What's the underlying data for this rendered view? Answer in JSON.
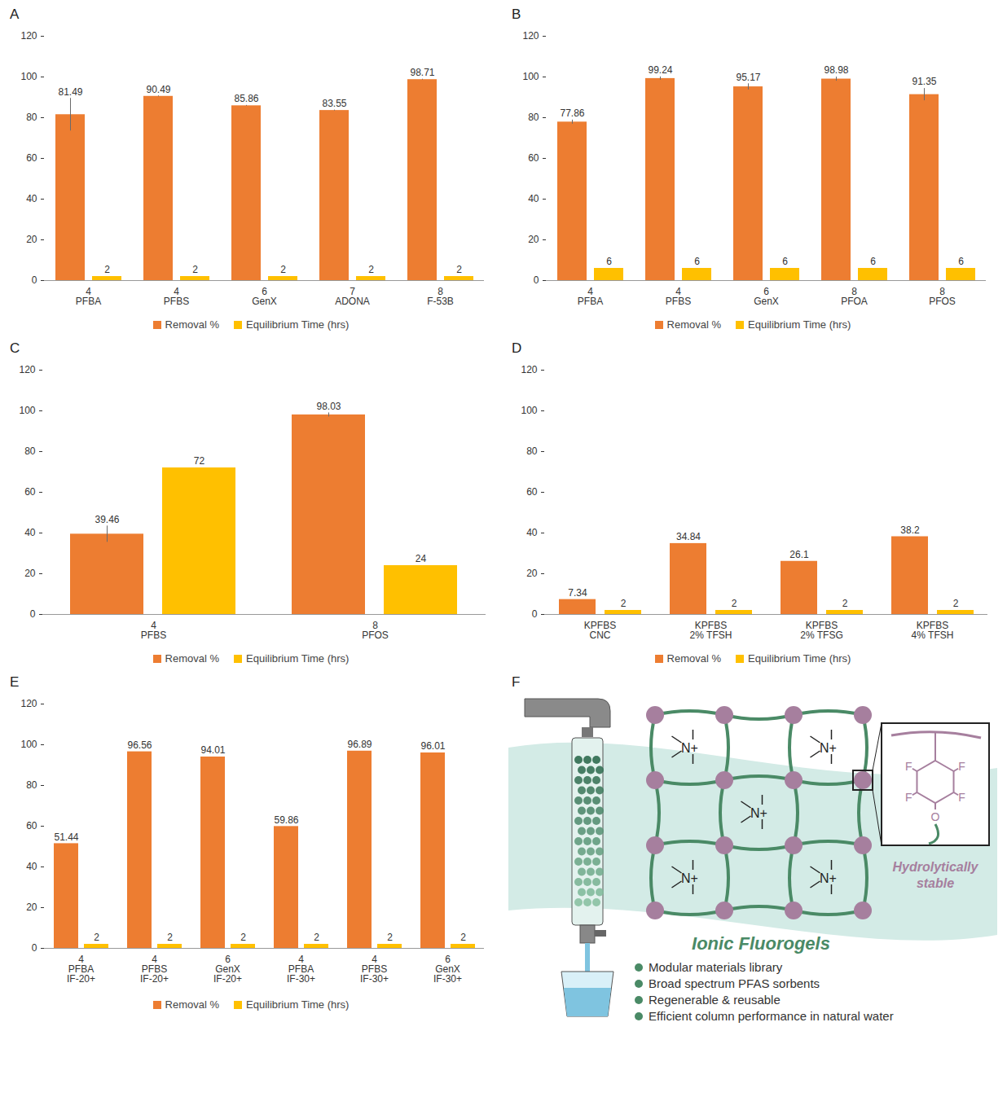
{
  "chart_data": [
    {
      "type": "bar",
      "title": "A",
      "categories": [
        [
          "4",
          "PFBA"
        ],
        [
          "4",
          "PFBS"
        ],
        [
          "6",
          "GenX"
        ],
        [
          "7",
          "ADONA"
        ],
        [
          "8",
          "F-53B"
        ]
      ],
      "series": [
        {
          "name": "Removal %",
          "color": "#ed7d31",
          "values": [
            81.49,
            90.49,
            85.86,
            83.55,
            98.71
          ],
          "errors": [
            8,
            0.2,
            0.2,
            0.2,
            0.2
          ]
        },
        {
          "name": "Equilibrium Time (hrs)",
          "color": "#ffc000",
          "values": [
            2,
            2,
            2,
            2,
            2
          ]
        }
      ],
      "ylim": [
        0,
        120
      ],
      "yticks": [
        0,
        20,
        40,
        60,
        80,
        100,
        120
      ],
      "grid": false,
      "data_labels": true,
      "legend": "bottom"
    },
    {
      "type": "bar",
      "title": "B",
      "categories": [
        [
          "4",
          "PFBA"
        ],
        [
          "4",
          "PFBS"
        ],
        [
          "6",
          "GenX"
        ],
        [
          "8",
          "PFOA"
        ],
        [
          "8",
          "PFOS"
        ]
      ],
      "series": [
        {
          "name": "Removal %",
          "color": "#ed7d31",
          "values": [
            77.86,
            99.24,
            95.17,
            98.98,
            91.35
          ],
          "errors": [
            1,
            0.8,
            1.5,
            1,
            3
          ]
        },
        {
          "name": "Equilibrium Time (hrs)",
          "color": "#ffc000",
          "values": [
            6,
            6,
            6,
            6,
            6
          ]
        }
      ],
      "ylim": [
        0,
        120
      ],
      "yticks": [
        0,
        20,
        40,
        60,
        80,
        100,
        120
      ],
      "grid": false,
      "data_labels": true,
      "legend": "bottom"
    },
    {
      "type": "bar",
      "title": "C",
      "categories": [
        [
          "4",
          "PFBS"
        ],
        [
          "8",
          "PFOS"
        ]
      ],
      "series": [
        {
          "name": "Removal %",
          "color": "#ed7d31",
          "values": [
            39.46,
            98.03
          ],
          "errors": [
            4,
            1
          ]
        },
        {
          "name": "Equilibrium Time (hrs)",
          "color": "#ffc000",
          "values": [
            72,
            24
          ]
        }
      ],
      "ylim": [
        0,
        120
      ],
      "yticks": [
        0,
        20,
        40,
        60,
        80,
        100,
        120
      ],
      "grid": false,
      "data_labels": true,
      "legend": "bottom"
    },
    {
      "type": "bar",
      "title": "D",
      "categories": [
        [
          "KPFBS",
          "CNC"
        ],
        [
          "KPFBS",
          "2% TFSH"
        ],
        [
          "KPFBS",
          "2% TFSG"
        ],
        [
          "KPFBS",
          "4% TFSH"
        ]
      ],
      "series": [
        {
          "name": "Removal %",
          "color": "#ed7d31",
          "values": [
            7.34,
            34.84,
            26.1,
            38.2
          ]
        },
        {
          "name": "Equilibrium Time (hrs)",
          "color": "#ffc000",
          "values": [
            2,
            2,
            2,
            2
          ]
        }
      ],
      "ylim": [
        0,
        120
      ],
      "yticks": [
        0,
        20,
        40,
        60,
        80,
        100,
        120
      ],
      "grid": false,
      "data_labels": true,
      "legend": "bottom"
    },
    {
      "type": "bar",
      "title": "E",
      "categories": [
        [
          "4",
          "PFBA",
          "IF-20+"
        ],
        [
          "4",
          "PFBS",
          "IF-20+"
        ],
        [
          "6",
          "GenX",
          "IF-20+"
        ],
        [
          "4",
          "PFBA",
          "IF-30+"
        ],
        [
          "4",
          "PFBS",
          "IF-30+"
        ],
        [
          "6",
          "GenX",
          "IF-30+"
        ]
      ],
      "series": [
        {
          "name": "Removal %",
          "color": "#ed7d31",
          "values": [
            51.44,
            96.56,
            94.01,
            59.86,
            96.89,
            96.01
          ]
        },
        {
          "name": "Equilibrium Time (hrs)",
          "color": "#ffc000",
          "values": [
            2,
            2,
            2,
            2,
            2,
            2
          ]
        }
      ],
      "ylim": [
        0,
        120
      ],
      "yticks": [
        0,
        20,
        40,
        60,
        80,
        100,
        120
      ],
      "grid": false,
      "data_labels": true,
      "legend": "bottom"
    }
  ],
  "diagram": {
    "label": "F",
    "title": "Ionic Fluorogels",
    "annotation": "Hydrolytically stable",
    "cation_label": "N+",
    "ring_atoms": [
      "F",
      "F",
      "F",
      "F",
      "O"
    ],
    "bullets": [
      "Modular materials library",
      "Broad spectrum PFAS sorbents",
      "Regenerable & reusable",
      "Efficient column performance in natural water"
    ]
  }
}
